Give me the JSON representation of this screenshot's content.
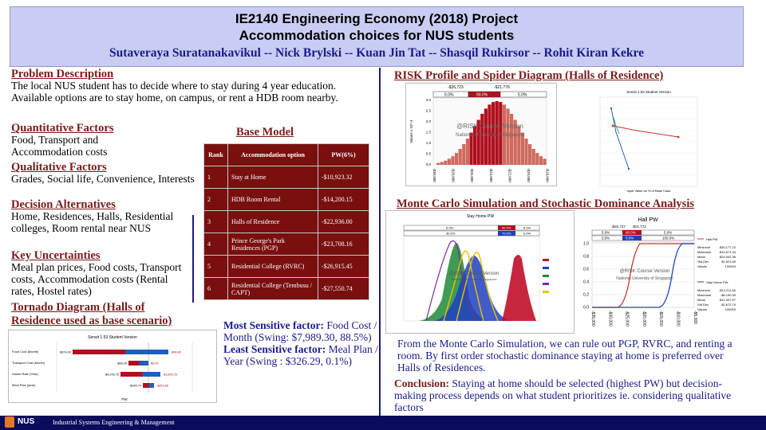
{
  "header": {
    "title_line1": "IE2140 Engineering Economy (2018) Project",
    "title_line2": "Accommodation  choices for NUS students",
    "authors": "Sutaveraya Suratanakavikul -- Nick Brylski --  Kuan Jin Tat -- Shasqil Rukirsor -- Rohit Kiran Kekre"
  },
  "problem": {
    "heading": "Problem  Description",
    "text": "The local NUS student has to decide where to stay during  4 year education.  Available  options are to stay home, on campus,  or rent a HDB room nearby."
  },
  "quant": {
    "heading": "Quantitative Factors",
    "text": "Food, Transport  and Accommodation  costs"
  },
  "qual": {
    "heading": "Qualitative  Factors",
    "text": "Grades, Social life,  Convenience, Interests"
  },
  "alts": {
    "heading": "Decision Alternatives",
    "text": "Home, Residences,  Halls, Residential  colleges,  Room rental near NUS"
  },
  "uncert": {
    "heading": "Key Uncertainties",
    "text": "Meal plan prices, Food costs, Transport costs, Accommodation costs (Rental rates, Hostel rates)"
  },
  "tornado_heading": "Tornado  Diagram  (Halls of Residence used as base scenario)",
  "tornado": {
    "title": "Sensit 1.53 Student Version",
    "xlabel": "PW",
    "rows": [
      {
        "label": "Food Cost (Month)",
        "low": "-$374.00",
        "high": "-$96.80"
      },
      {
        "label": "Transport Cost (Month)",
        "low": "-$65.00",
        "high": "$0.00"
      },
      {
        "label": "Hostel Rate (Year)",
        "low": "-$4,299.75",
        "high": "-$3,890.25"
      },
      {
        "label": "Meal Plan (year)",
        "low": "-$940.74",
        "high": "-$853.86"
      }
    ]
  },
  "base_model": {
    "heading": "Base Model",
    "columns": [
      "Rank",
      "Accommodation option",
      "PW(6%)"
    ],
    "rows": [
      [
        "1",
        "Stay at Home",
        "-$10,923.32"
      ],
      [
        "2",
        "HDB Room Rental",
        "-$14,200.15"
      ],
      [
        "3",
        "Halls of Residence",
        "-$22,936.00"
      ],
      [
        "4",
        "Prince George's Park Residences (PGP)",
        "-$23,708.16"
      ],
      [
        "5",
        "Residential College (RVRC)",
        "-$26,915.45"
      ],
      [
        "6",
        "Residential College (Tembusu / CAPT)",
        "-$27,550.74"
      ]
    ]
  },
  "sensitivity": {
    "most_label": "Most Sensitive factor:",
    "most_text": "Food Cost / Month (Swing: $7,989.30, 88.5%)",
    "least_label": "Least Sensitive factor:",
    "least_text": "Meal Plan / Year (Swing : $326.29, 0.1%)"
  },
  "risk": {
    "heading": "RISK Profile  and  Spider  Diagram  (Halls of Residence)",
    "hist_markers": [
      "-$26,723",
      "-$21,776"
    ],
    "hist_pcts": [
      "5.0%",
      "90.0%",
      "5.0%"
    ],
    "watermark1": "@RISK Course Version",
    "watermark2": "National University of Singapore",
    "ylabel": "Values x 10^-4",
    "xticks": [
      "-$30,000",
      "-$28,000",
      "-$26,000",
      "-$24,000",
      "-$22,000",
      "-$20,000",
      "-$18,000"
    ],
    "yticks": [
      "3.0",
      "2.5",
      "2.0",
      "1.5",
      "1.0",
      "0.5",
      "0.0"
    ],
    "spider_title": "Sensit 1.53 Student Version",
    "spider_xlabel": "Input Value as % of Base Case"
  },
  "mc": {
    "heading": "Monte Carlo  Simulation  and  Stochastic Dominance  Analysis",
    "left_title": "Stay Home PW",
    "left_pct_a": [
      "5.0%",
      "90.0%",
      "5.0%"
    ],
    "left_pct_b": [
      "30.0%",
      "70.0%",
      "0.0%"
    ],
    "right_title": "Hall PW",
    "right_markers": [
      "-$26,727",
      "-$21,772"
    ],
    "right_pct_a": [
      "5.0%",
      "90.0%",
      "5.0%"
    ],
    "right_pct_b": [
      "0.0%",
      "0.0%",
      "100.0%"
    ],
    "yticks": [
      "1.0",
      "0.8",
      "0.6",
      "0.4",
      "0.2",
      "0.0"
    ],
    "xticks": [
      "-$35,000",
      "-$30,000",
      "-$25,000",
      "-$20,000",
      "-$15,000",
      "-$10,000",
      "-$5,000"
    ],
    "legend": {
      "hall": "Hall PW",
      "home": "Stay Home PW"
    },
    "hall_stats": [
      [
        "Minimum",
        "-$30,177.22"
      ],
      [
        "Maximum",
        "-$19,671.94"
      ],
      [
        "Mean",
        "-$24,002.36"
      ],
      [
        "Std Dev",
        "$1,521.69"
      ],
      [
        "Values",
        "100000"
      ]
    ],
    "home_stats": [
      [
        "Minimum",
        "-$12,211.60"
      ],
      [
        "Maximum",
        "-$6,190.39"
      ],
      [
        "Mean",
        "-$12,007.97"
      ],
      [
        "Std Dev",
        "$2,672.79"
      ],
      [
        "Values",
        "100000"
      ]
    ],
    "summary": "From the Monte Carlo Simulation,  we can rule out PGP, RVRC, and renting  a room. By first  order stochastic dominance  staying at home is preferred  over Halls of Residences."
  },
  "conclusion": {
    "label": "Conclusion:",
    "text": "Staying  at home should be selected (highest PW) but decision-making  process depends on what  student prioritizes  ie. considering  qualitative  factors"
  },
  "footer": {
    "logo_text": "NUS",
    "dept": "Industrial Systems Engineering & Management"
  },
  "colors": {
    "maroon": "#7a0f0f",
    "navy": "#1a1a8c",
    "banner": "#c9cdf3",
    "hall_red": "#c0392b",
    "home_blue": "#1f3fbf"
  }
}
